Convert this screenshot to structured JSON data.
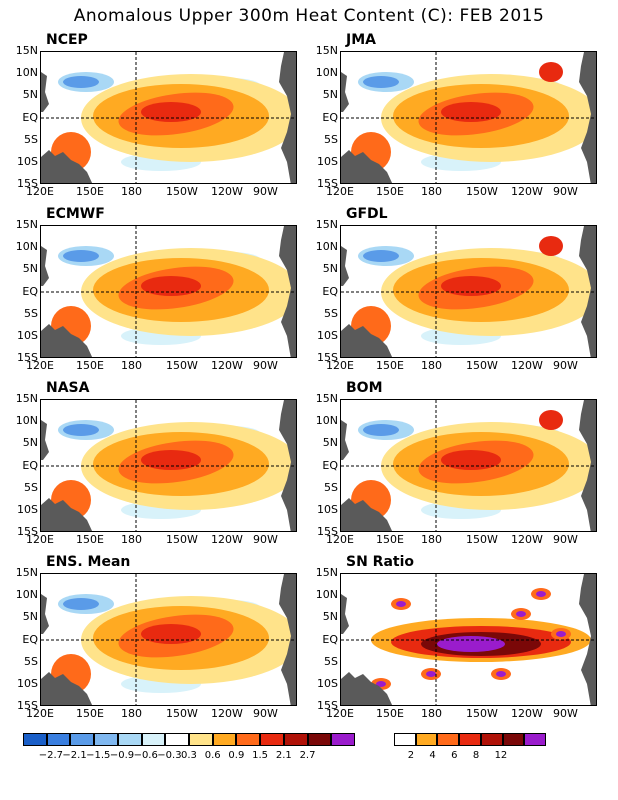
{
  "title": "Anomalous Upper 300m Heat Content (C): FEB 2015",
  "panels": [
    {
      "name": "NCEP",
      "scale": "anomaly"
    },
    {
      "name": "JMA",
      "scale": "anomaly"
    },
    {
      "name": "ECMWF",
      "scale": "anomaly"
    },
    {
      "name": "GFDL",
      "scale": "anomaly"
    },
    {
      "name": "NASA",
      "scale": "anomaly"
    },
    {
      "name": "BOM",
      "scale": "anomaly"
    },
    {
      "name": "ENS. Mean",
      "scale": "anomaly"
    },
    {
      "name": "SN Ratio",
      "scale": "ratio"
    }
  ],
  "lat_ticks": [
    "15N",
    "10N",
    "5N",
    "EQ",
    "5S",
    "10S",
    "15S"
  ],
  "lon_ticks": [
    "120E",
    "150E",
    "180",
    "150W",
    "120W",
    "90W"
  ],
  "anomaly_colorbar": {
    "colors": [
      "#1a5fc8",
      "#3a7fe0",
      "#5a9be8",
      "#80b8f0",
      "#a9d8f5",
      "#d8f2fa",
      "#ffffff",
      "#ffe38a",
      "#ffaa22",
      "#ff6a1a",
      "#e82a10",
      "#b01208",
      "#7a0808",
      "#9a1ccc"
    ],
    "labels": [
      "−2.7",
      "−2.1",
      "−1.5",
      "−0.9",
      "−0.6",
      "−0.3",
      "0.3",
      "0.6",
      "0.9",
      "1.5",
      "2.1",
      "2.7"
    ]
  },
  "ratio_colorbar": {
    "colors": [
      "#ffffff",
      "#ffaa22",
      "#ff6a1a",
      "#e82a10",
      "#b01208",
      "#7a0808",
      "#9a1ccc"
    ],
    "labels": [
      "2",
      "4",
      "6",
      "8",
      "12"
    ]
  }
}
